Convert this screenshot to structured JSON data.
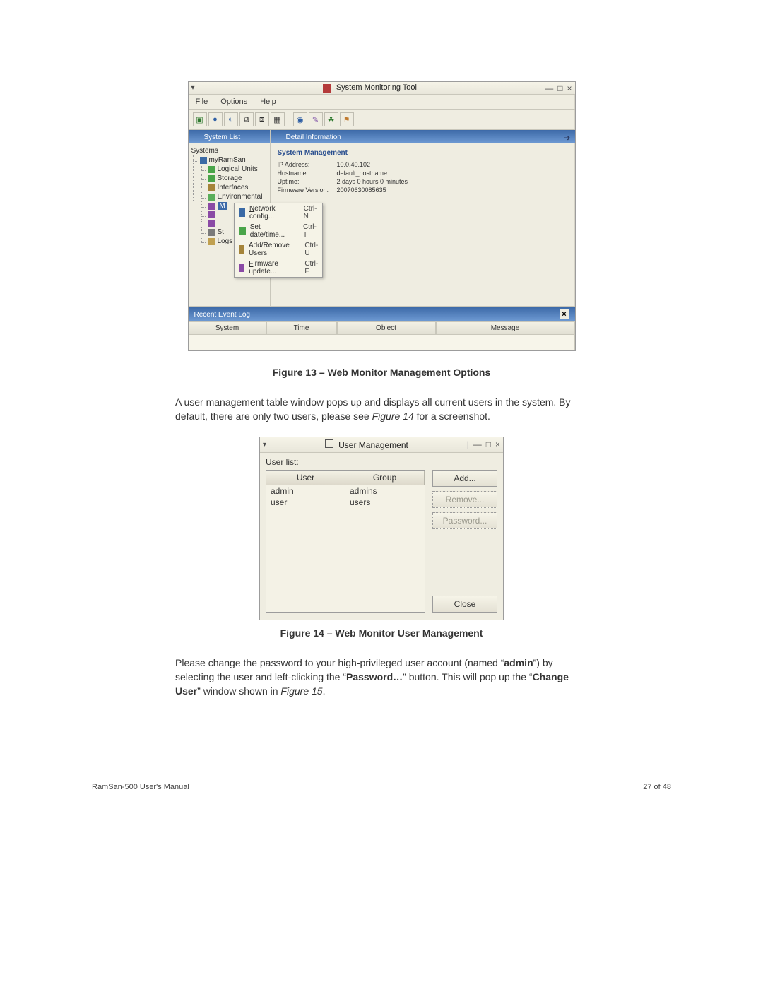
{
  "fig13": {
    "window_title": "System Monitoring Tool",
    "menus": {
      "file": "File",
      "options": "Options",
      "help": "Help"
    },
    "panes": {
      "system_list": "System List",
      "detail": "Detail Information",
      "event_log": "Recent Event Log"
    },
    "tree": {
      "root": "Systems",
      "node": "myRamSan",
      "children": [
        "Logical Units",
        "Storage",
        "Interfaces",
        "Environmental",
        "M",
        "",
        "",
        "St",
        "Logs"
      ],
      "selected_index": 4
    },
    "detail": {
      "heading": "System Management",
      "rows": [
        {
          "k": "IP Address:",
          "v": "10.0.40.102"
        },
        {
          "k": "Hostname:",
          "v": "default_hostname"
        },
        {
          "k": "Uptime:",
          "v": "2 days 0 hours 0 minutes"
        },
        {
          "k": "Firmware Version:",
          "v": "20070630085635"
        }
      ]
    },
    "context_menu": [
      {
        "label": "Network config...",
        "sc": "Ctrl-N",
        "u": "N"
      },
      {
        "label": "Set date/time...",
        "sc": "Ctrl-T",
        "u": "t"
      },
      {
        "label": "Add/Remove Users",
        "sc": "Ctrl-U",
        "u": "U"
      },
      {
        "label": "Firmware update...",
        "sc": "Ctrl-F",
        "u": "F"
      }
    ],
    "event_cols": [
      "System",
      "Time",
      "Object",
      "Message"
    ],
    "caption": "Figure 13 – Web Monitor Management Options"
  },
  "para1_a": "A user management table window pops up and displays all current users in the system.  By default, there are only two users, please see ",
  "para1_em": "Figure 14",
  "para1_b": " for a screenshot.",
  "fig14": {
    "title": "User Management",
    "label": "User list:",
    "columns": [
      "User",
      "Group"
    ],
    "rows": [
      {
        "user": "admin",
        "group": "admins"
      },
      {
        "user": "user",
        "group": "users"
      }
    ],
    "buttons": {
      "add": "Add...",
      "remove": "Remove...",
      "password": "Password...",
      "close": "Close"
    },
    "caption": "Figure 14 – Web Monitor User Management"
  },
  "para2": {
    "t1": "Please change the password to your high-privileged user account (named “",
    "b1": "admin",
    "t2": "”) by selecting the user and left-clicking the “",
    "b2": "Password…",
    "t3": "” button.  This will pop up the “",
    "b3": "Change User",
    "t4": "” window shown in ",
    "em": "Figure 15",
    "t5": "."
  },
  "footer": {
    "left": "RamSan-500 User's Manual",
    "right": "27 of 48"
  }
}
